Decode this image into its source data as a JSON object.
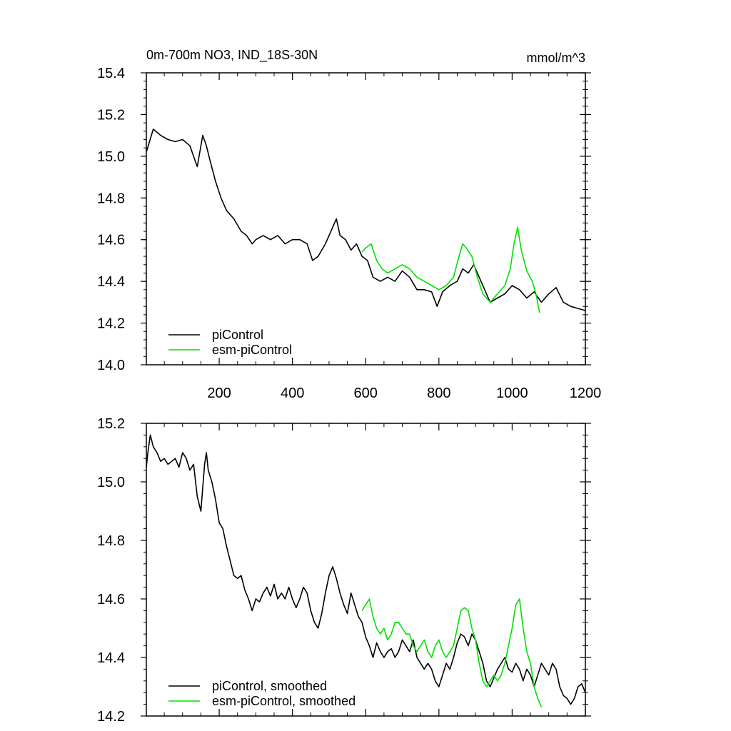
{
  "colors": {
    "piControl": "#000000",
    "esm_piControl": "#00e000",
    "axis": "#000000"
  },
  "chart_data": [
    {
      "type": "line",
      "title": "0m-700m NO3, IND_18S-30N",
      "units": "mmol/m^3",
      "xlim": [
        1,
        1200
      ],
      "ylim": [
        14.0,
        15.4
      ],
      "xticks": [
        200,
        400,
        600,
        800,
        1000,
        1200
      ],
      "xtick_labels": [
        "200",
        "400",
        "600",
        "800",
        "1000",
        "1200"
      ],
      "yticks": [
        14.0,
        14.2,
        14.4,
        14.6,
        14.8,
        15.0,
        15.2,
        15.4
      ],
      "ytick_labels": [
        "14.0",
        "14.2",
        "14.4",
        "14.6",
        "14.8",
        "15.0",
        "15.2",
        "15.4"
      ],
      "legend_position": "bottom-left",
      "series": [
        {
          "name": "piControl",
          "color": "#000000",
          "x": [
            1,
            20,
            40,
            60,
            80,
            100,
            120,
            140,
            155,
            165,
            175,
            190,
            205,
            220,
            240,
            260,
            275,
            290,
            300,
            320,
            340,
            360,
            380,
            400,
            420,
            440,
            455,
            470,
            490,
            510,
            520,
            530,
            545,
            560,
            575,
            590,
            605,
            620,
            640,
            660,
            680,
            700,
            720,
            740,
            760,
            780,
            795,
            810,
            830,
            850,
            865,
            880,
            895,
            910,
            925,
            940,
            960,
            980,
            1000,
            1020,
            1040,
            1060,
            1080,
            1100,
            1120,
            1140,
            1160,
            1180,
            1200
          ],
          "y": [
            15.02,
            15.13,
            15.1,
            15.08,
            15.07,
            15.08,
            15.05,
            14.95,
            15.1,
            15.05,
            14.98,
            14.88,
            14.8,
            14.74,
            14.7,
            14.64,
            14.62,
            14.58,
            14.6,
            14.62,
            14.6,
            14.62,
            14.58,
            14.6,
            14.6,
            14.58,
            14.5,
            14.52,
            14.58,
            14.66,
            14.7,
            14.62,
            14.6,
            14.55,
            14.58,
            14.52,
            14.5,
            14.42,
            14.4,
            14.42,
            14.4,
            14.45,
            14.42,
            14.36,
            14.36,
            14.35,
            14.28,
            14.35,
            14.38,
            14.4,
            14.46,
            14.44,
            14.48,
            14.42,
            14.36,
            14.3,
            14.32,
            14.34,
            14.38,
            14.36,
            14.32,
            14.35,
            14.3,
            14.34,
            14.37,
            14.3,
            14.28,
            14.27,
            14.26
          ]
        },
        {
          "name": "esm-piControl",
          "color": "#00e000",
          "x": [
            590,
            600,
            615,
            630,
            645,
            660,
            680,
            700,
            720,
            740,
            760,
            780,
            800,
            820,
            840,
            855,
            865,
            875,
            890,
            905,
            920,
            940,
            960,
            980,
            995,
            1005,
            1015,
            1025,
            1040,
            1055,
            1065,
            1075
          ],
          "y": [
            14.54,
            14.56,
            14.58,
            14.5,
            14.46,
            14.44,
            14.46,
            14.48,
            14.46,
            14.42,
            14.4,
            14.38,
            14.36,
            14.38,
            14.42,
            14.52,
            14.58,
            14.56,
            14.52,
            14.42,
            14.34,
            14.3,
            14.34,
            14.38,
            14.46,
            14.58,
            14.66,
            14.55,
            14.45,
            14.4,
            14.34,
            14.25
          ]
        }
      ]
    },
    {
      "type": "line",
      "title": "",
      "units": "",
      "xlim": [
        1,
        1200
      ],
      "ylim": [
        14.2,
        15.2
      ],
      "xticks": [
        200,
        400,
        600,
        800,
        1000,
        1200
      ],
      "xtick_labels": [],
      "yticks": [
        14.2,
        14.4,
        14.6,
        14.8,
        15.0,
        15.2
      ],
      "ytick_labels": [
        "14.2",
        "14.4",
        "14.6",
        "14.8",
        "15.0",
        "15.2"
      ],
      "legend_position": "bottom-left",
      "series": [
        {
          "name": "piControl, smoothed",
          "color": "#000000",
          "x": [
            1,
            5,
            12,
            20,
            30,
            40,
            50,
            60,
            70,
            80,
            90,
            100,
            110,
            120,
            130,
            140,
            150,
            160,
            165,
            170,
            180,
            190,
            200,
            210,
            220,
            230,
            240,
            250,
            260,
            270,
            280,
            290,
            300,
            310,
            320,
            330,
            340,
            350,
            360,
            370,
            380,
            390,
            400,
            410,
            420,
            430,
            440,
            450,
            460,
            470,
            480,
            490,
            500,
            510,
            520,
            530,
            540,
            550,
            560,
            570,
            580,
            590,
            600,
            610,
            620,
            630,
            640,
            650,
            660,
            670,
            680,
            690,
            700,
            710,
            720,
            730,
            740,
            750,
            760,
            770,
            780,
            790,
            800,
            810,
            820,
            830,
            840,
            850,
            860,
            870,
            880,
            890,
            900,
            910,
            920,
            930,
            940,
            950,
            960,
            970,
            980,
            990,
            1000,
            1010,
            1020,
            1030,
            1040,
            1050,
            1060,
            1070,
            1080,
            1090,
            1100,
            1110,
            1120,
            1130,
            1140,
            1150,
            1160,
            1170,
            1180,
            1190,
            1200
          ],
          "y": [
            15.05,
            15.1,
            15.16,
            15.12,
            15.1,
            15.07,
            15.08,
            15.06,
            15.07,
            15.08,
            15.05,
            15.1,
            15.08,
            15.04,
            15.06,
            14.95,
            14.9,
            15.06,
            15.1,
            15.04,
            15.0,
            14.94,
            14.86,
            14.84,
            14.78,
            14.73,
            14.68,
            14.67,
            14.68,
            14.63,
            14.6,
            14.56,
            14.6,
            14.59,
            14.62,
            14.64,
            14.61,
            14.65,
            14.6,
            14.62,
            14.6,
            14.64,
            14.6,
            14.57,
            14.6,
            14.64,
            14.62,
            14.56,
            14.52,
            14.5,
            14.55,
            14.62,
            14.68,
            14.71,
            14.67,
            14.62,
            14.58,
            14.55,
            14.62,
            14.58,
            14.54,
            14.52,
            14.47,
            14.44,
            14.4,
            14.45,
            14.42,
            14.4,
            14.42,
            14.43,
            14.4,
            14.42,
            14.46,
            14.44,
            14.42,
            14.46,
            14.4,
            14.38,
            14.36,
            14.38,
            14.36,
            14.32,
            14.3,
            14.34,
            14.38,
            14.36,
            14.4,
            14.45,
            14.48,
            14.47,
            14.44,
            14.48,
            14.46,
            14.42,
            14.38,
            14.32,
            14.3,
            14.33,
            14.36,
            14.38,
            14.4,
            14.36,
            14.35,
            14.38,
            14.36,
            14.32,
            14.36,
            14.34,
            14.3,
            14.34,
            14.38,
            14.36,
            14.34,
            14.38,
            14.36,
            14.3,
            14.27,
            14.26,
            14.24,
            14.26,
            14.3,
            14.31,
            14.28
          ]
        },
        {
          "name": "esm-piControl, smoothed",
          "color": "#00e000",
          "x": [
            590,
            600,
            610,
            620,
            630,
            640,
            650,
            660,
            670,
            680,
            690,
            700,
            710,
            720,
            730,
            740,
            750,
            760,
            770,
            780,
            790,
            800,
            810,
            820,
            830,
            840,
            850,
            860,
            870,
            880,
            890,
            900,
            910,
            920,
            930,
            940,
            950,
            960,
            970,
            980,
            990,
            1000,
            1010,
            1020,
            1030,
            1040,
            1050,
            1060,
            1070,
            1080
          ],
          "y": [
            14.56,
            14.58,
            14.6,
            14.54,
            14.5,
            14.48,
            14.5,
            14.46,
            14.48,
            14.52,
            14.52,
            14.5,
            14.48,
            14.48,
            14.44,
            14.42,
            14.44,
            14.46,
            14.42,
            14.4,
            14.44,
            14.46,
            14.42,
            14.4,
            14.42,
            14.44,
            14.5,
            14.56,
            14.57,
            14.56,
            14.5,
            14.46,
            14.38,
            14.32,
            14.3,
            14.32,
            14.34,
            14.32,
            14.34,
            14.38,
            14.44,
            14.5,
            14.58,
            14.6,
            14.5,
            14.42,
            14.38,
            14.3,
            14.26,
            14.23
          ]
        }
      ]
    }
  ]
}
